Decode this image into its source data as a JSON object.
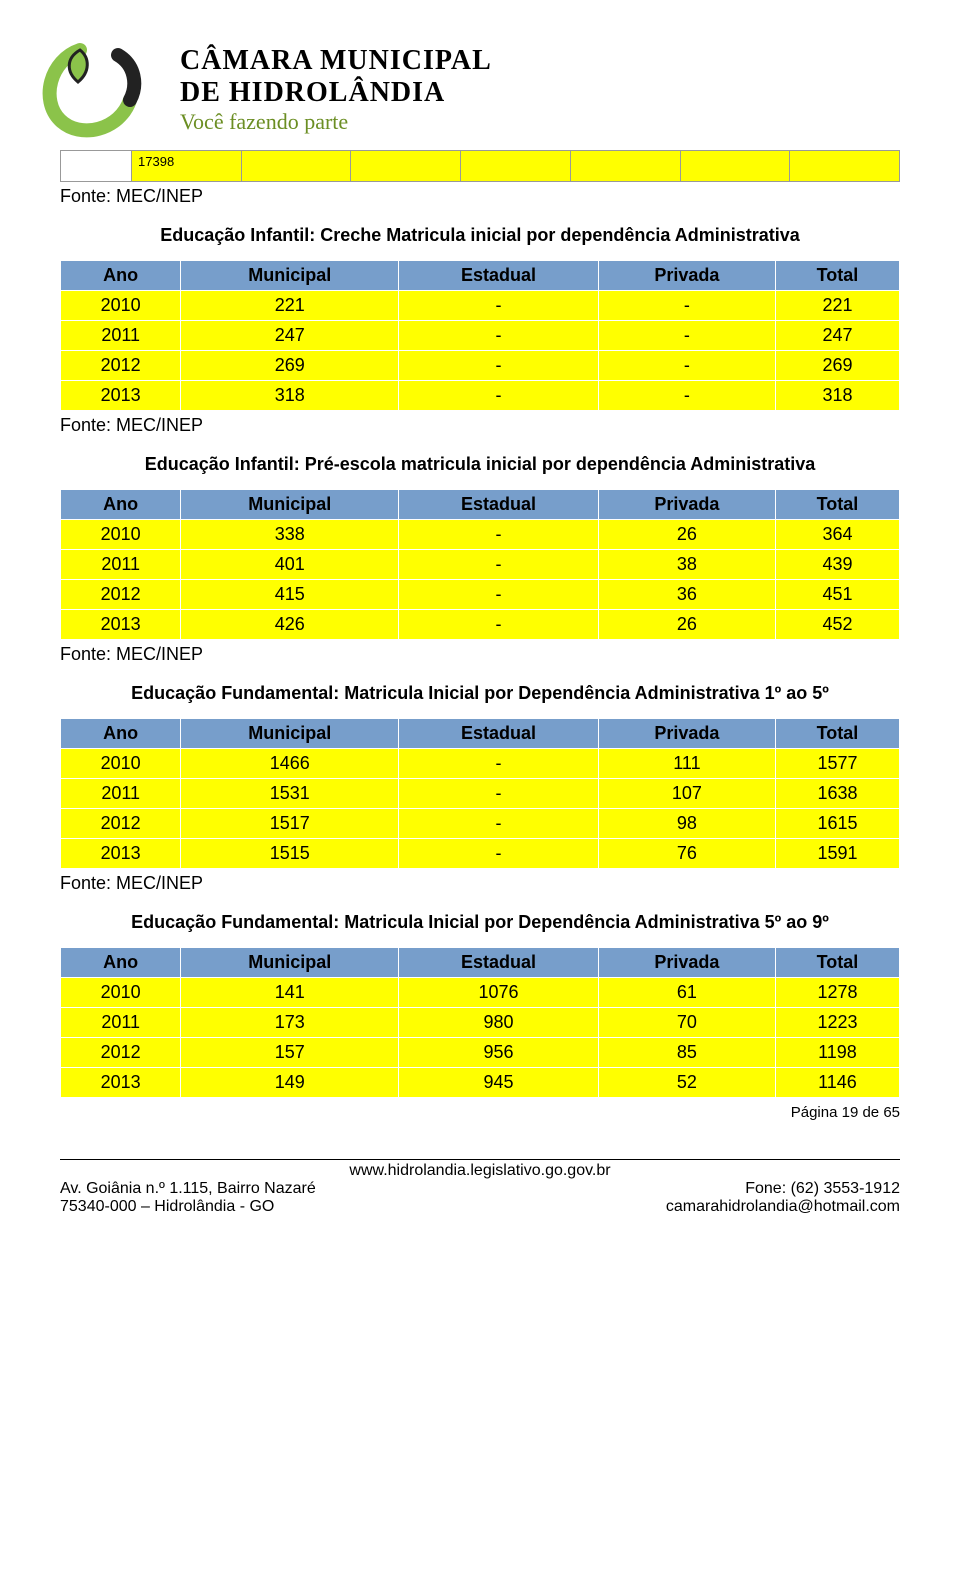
{
  "header": {
    "line1": "CÂMARA MUNICIPAL",
    "line2": "DE HIDROLÂNDIA",
    "line3": "Você fazendo parte"
  },
  "small_box_value": "17398",
  "source_label": "Fonte: MEC/INEP",
  "tables": {
    "columns": [
      "Ano",
      "Municipal",
      "Estadual",
      "Privada",
      "Total"
    ],
    "header_bg": "#779ecb",
    "row_bg": "#ffff00"
  },
  "sec1": {
    "title": "Educação Infantil: Creche Matricula inicial por dependência Administrativa",
    "rows": [
      [
        "2010",
        "221",
        "-",
        "-",
        "221"
      ],
      [
        "2011",
        "247",
        "-",
        "-",
        "247"
      ],
      [
        "2012",
        "269",
        "-",
        "-",
        "269"
      ],
      [
        "2013",
        "318",
        "-",
        "-",
        "318"
      ]
    ]
  },
  "sec2": {
    "title": "Educação Infantil: Pré-escola matricula inicial por dependência Administrativa",
    "rows": [
      [
        "2010",
        "338",
        "-",
        "26",
        "364"
      ],
      [
        "2011",
        "401",
        "-",
        "38",
        "439"
      ],
      [
        "2012",
        "415",
        "-",
        "36",
        "451"
      ],
      [
        "2013",
        "426",
        "-",
        "26",
        "452"
      ]
    ]
  },
  "sec3": {
    "title": "Educação Fundamental: Matricula Inicial por Dependência Administrativa 1º ao 5º",
    "rows": [
      [
        "2010",
        "1466",
        "-",
        "111",
        "1577"
      ],
      [
        "2011",
        "1531",
        "-",
        "107",
        "1638"
      ],
      [
        "2012",
        "1517",
        "-",
        "98",
        "1615"
      ],
      [
        "2013",
        "1515",
        "-",
        "76",
        "1591"
      ]
    ]
  },
  "sec4": {
    "title": "Educação Fundamental: Matricula Inicial por Dependência Administrativa 5º ao 9º",
    "rows": [
      [
        "2010",
        "141",
        "1076",
        "61",
        "1278"
      ],
      [
        "2011",
        "173",
        "980",
        "70",
        "1223"
      ],
      [
        "2012",
        "157",
        "956",
        "85",
        "1198"
      ],
      [
        "2013",
        "149",
        "945",
        "52",
        "1146"
      ]
    ]
  },
  "page_num": "Página 19 de 65",
  "footer": {
    "url": "www.hidrolandia.legislativo.go.gov.br",
    "left1": "Av. Goiânia n.º 1.115, Bairro Nazaré",
    "right1": "Fone: (62) 3553-1912",
    "left2": "75340-000 – Hidrolândia - GO",
    "right2": "camarahidrolandia@hotmail.com"
  }
}
